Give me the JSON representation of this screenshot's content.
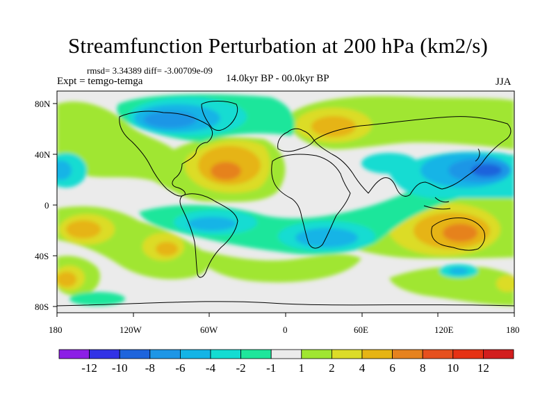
{
  "title": "Streamfunction Perturbation at 200 hPa (km2/s)",
  "stats_line": "rmsd= 3.34389 diff= -3.00709e-09",
  "experiment_label": "Expt = temgo-temga",
  "period_label": "14.0kyr BP - 00.0kyr BP",
  "season_label": "JJA",
  "lat_ticks": [
    "80N",
    "40N",
    "0",
    "40S",
    "80S"
  ],
  "lon_ticks": [
    "180",
    "120W",
    "60W",
    "0",
    "60E",
    "120E",
    "180"
  ],
  "colorbar": {
    "labels": [
      "-12",
      "-10",
      "-8",
      "-6",
      "-4",
      "-2",
      "-1",
      "1",
      "2",
      "4",
      "6",
      "8",
      "10",
      "12"
    ],
    "colors": [
      "#8c1ee6",
      "#3232e6",
      "#1e64dc",
      "#1e96e6",
      "#14b4e6",
      "#14dcd2",
      "#1ee69b",
      "#ebebeb",
      "#a0e632",
      "#dcdc28",
      "#e6b414",
      "#e6821e",
      "#e6501e",
      "#e63214",
      "#d21e1e"
    ]
  },
  "colors": {
    "land_outline": "#000000",
    "neutral_fill": "#ebebeb"
  }
}
